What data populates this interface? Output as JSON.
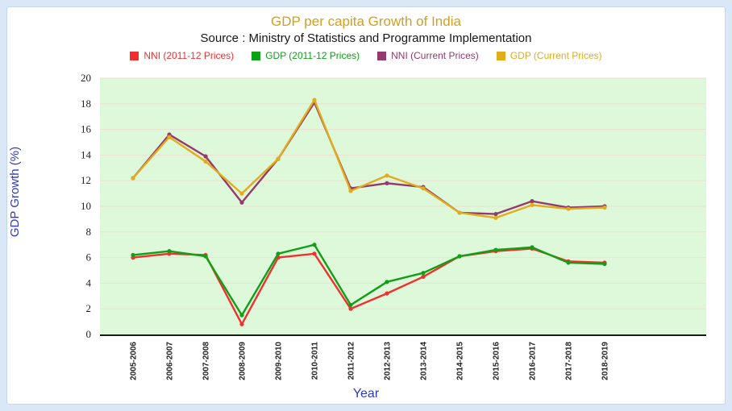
{
  "page": {
    "background": "#d9e7f7",
    "panel_border": "#c3d6ee"
  },
  "chart": {
    "title": "GDP per capita Growth of India",
    "subtitle": "Source : Ministry of Statistics and Programme Implementation",
    "y_axis_title": "GDP Growth (%)",
    "x_axis_title": "Year",
    "title_color": "#d2a01d",
    "axis_title_color": "#2d3ac1"
  },
  "chart_data": {
    "type": "line",
    "title": "GDP per capita Growth of India",
    "subtitle": "Source : Ministry of Statistics and Programme Implementation",
    "xlabel": "Year",
    "ylabel": "GDP Growth (%)",
    "ylim": [
      0,
      20
    ],
    "ytick_step": 2,
    "grid": true,
    "legend_position": "top",
    "plot_bg": "#def8da",
    "gridline_color": "#ecdfd2",
    "axis_line_color": "#1a1a1a",
    "categories": [
      "2005-2006",
      "2006-2007",
      "2007-2008",
      "2008-2009",
      "2009-2010",
      "2010-2011",
      "2011-2012",
      "2012-2013",
      "2013-2014",
      "2014-2015",
      "2015-2016",
      "2016-2017",
      "2017-2018",
      "2018-2019"
    ],
    "series": [
      {
        "name": "NNI (2011-12 Prices)",
        "color": "#f03030",
        "values": [
          6.0,
          6.3,
          6.2,
          0.8,
          6.0,
          6.3,
          2.0,
          3.2,
          4.5,
          6.1,
          6.5,
          6.7,
          5.7,
          5.6
        ]
      },
      {
        "name": "GDP (2011-12 Prices)",
        "color": "#10a018",
        "values": [
          6.2,
          6.5,
          6.1,
          1.5,
          6.3,
          7.0,
          2.3,
          4.1,
          4.8,
          6.1,
          6.6,
          6.8,
          5.6,
          5.5
        ]
      },
      {
        "name": "NNI (Current Prices)",
        "color": "#943a6c",
        "values": [
          12.2,
          15.6,
          13.9,
          10.3,
          13.7,
          18.1,
          11.4,
          11.8,
          11.5,
          9.5,
          9.4,
          10.4,
          9.9,
          10.0
        ]
      },
      {
        "name": "GDP (Current Prices)",
        "color": "#e2ad1c",
        "values": [
          12.2,
          15.4,
          13.5,
          11.0,
          13.7,
          18.3,
          11.2,
          12.4,
          11.4,
          9.5,
          9.1,
          10.1,
          9.8,
          9.9
        ]
      }
    ]
  }
}
